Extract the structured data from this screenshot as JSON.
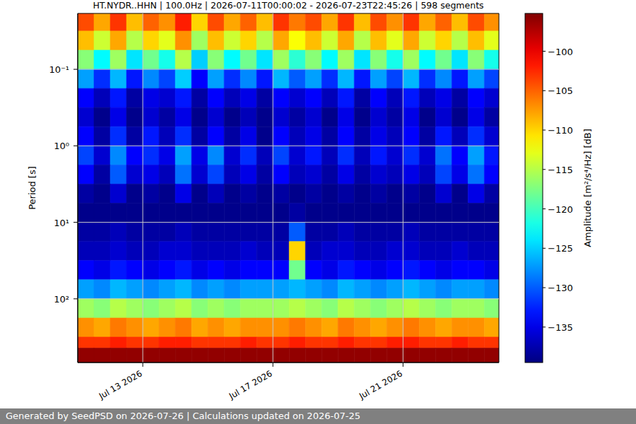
{
  "chart_data": {
    "type": "heatmap",
    "title": "HT.NYDR..HHN | 100.0Hz | 2026-07-11T00:00:02 - 2026-07-23T22:45:26 | 598 segments",
    "y_label": "Period [s]",
    "footer": "Generated by SeedPSD on 2026-07-26 | Calculations updated on 2026-07-25",
    "log": "y",
    "grid": true,
    "xlim": [
      "2026-07-11T00:00",
      "2026-07-23T22:45"
    ],
    "xticks": [
      {
        "value": "2026-07-13T00:00",
        "label": "Jul 13 2026"
      },
      {
        "value": "2026-07-17T00:00",
        "label": "Jul 17 2026"
      },
      {
        "value": "2026-07-21T00:00",
        "label": "Jul 21 2026"
      }
    ],
    "ylim": [
      0.0186,
      680
    ],
    "yticks": [
      {
        "value": 0.1,
        "label": "10⁻¹"
      },
      {
        "value": 1,
        "label": "10⁰"
      },
      {
        "value": 10,
        "label": "10¹"
      },
      {
        "value": 100,
        "label": "10²"
      }
    ],
    "colorbar": {
      "label": "Amplitude [m²/s⁴/Hz] [dB]",
      "range": [
        -139.5,
        -95.2
      ],
      "ticks": [
        {
          "value": -100,
          "label": "−100"
        },
        {
          "value": -105,
          "label": "−105"
        },
        {
          "value": -110,
          "label": "−110"
        },
        {
          "value": -115,
          "label": "−115"
        },
        {
          "value": -120,
          "label": "−120"
        },
        {
          "value": -125,
          "label": "−125"
        },
        {
          "value": -130,
          "label": "−130"
        },
        {
          "value": -135,
          "label": "−135"
        }
      ]
    },
    "x_edges": [
      "2026-07-11T00:00",
      "2026-07-11T12:00",
      "2026-07-12T00:00",
      "2026-07-12T12:00",
      "2026-07-13T00:00",
      "2026-07-13T12:00",
      "2026-07-14T00:00",
      "2026-07-14T12:00",
      "2026-07-15T00:00",
      "2026-07-15T12:00",
      "2026-07-16T00:00",
      "2026-07-16T12:00",
      "2026-07-17T00:00",
      "2026-07-17T12:00",
      "2026-07-18T00:00",
      "2026-07-18T12:00",
      "2026-07-19T00:00",
      "2026-07-19T12:00",
      "2026-07-20T00:00",
      "2026-07-20T12:00",
      "2026-07-21T00:00",
      "2026-07-21T12:00",
      "2026-07-22T00:00",
      "2026-07-22T12:00",
      "2026-07-23T00:00",
      "2026-07-23T12:00",
      "2026-07-23T22:45"
    ],
    "y_edges": [
      0.0186,
      0.0316,
      0.0562,
      0.1,
      0.178,
      0.316,
      0.562,
      1,
      1.78,
      3.16,
      5.62,
      10,
      17.8,
      31.6,
      56.2,
      100,
      178,
      316,
      440,
      680
    ],
    "cells": [
      [
        -104,
        -108,
        -103,
        -109,
        -105,
        -107,
        -102,
        -110,
        -104,
        -108,
        -105,
        -109,
        -103,
        -106,
        -104,
        -108,
        -103,
        -109,
        -104,
        -107,
        -103,
        -108,
        -105,
        -109,
        -104,
        -107
      ],
      [
        -109,
        -114,
        -108,
        -115,
        -110,
        -113,
        -107,
        -116,
        -109,
        -114,
        -110,
        -115,
        -108,
        -112,
        -109,
        -114,
        -108,
        -115,
        -109,
        -113,
        -108,
        -114,
        -110,
        -115,
        -109,
        -113
      ],
      [
        -117,
        -123,
        -116,
        -124,
        -118,
        -122,
        -115,
        -125,
        -117,
        -123,
        -118,
        -124,
        -116,
        -121,
        -117,
        -123,
        -116,
        -124,
        -117,
        -122,
        -116,
        -123,
        -118,
        -124,
        -117,
        -122
      ],
      [
        -127,
        -132,
        -126,
        -133,
        -128,
        -131,
        -125,
        -134,
        -127,
        -132,
        -128,
        -133,
        -126,
        -130,
        -127,
        -132,
        -126,
        -133,
        -127,
        -131,
        -126,
        -132,
        -128,
        -133,
        -127,
        -131
      ],
      [
        -134,
        -137,
        -133,
        -138,
        -135,
        -136,
        -133,
        -138,
        -134,
        -137,
        -135,
        -138,
        -134,
        -136,
        -134,
        -137,
        -133,
        -138,
        -134,
        -137,
        -133,
        -137,
        -135,
        -138,
        -134,
        -136
      ],
      [
        -136,
        -139,
        -135,
        -139,
        -136,
        -138,
        -135,
        -139,
        -136,
        -139,
        -137,
        -139,
        -136,
        -138,
        -136,
        -139,
        -135,
        -139,
        -136,
        -138,
        -135,
        -139,
        -136,
        -139,
        -135,
        -138
      ],
      [
        -134,
        -138,
        -132,
        -138,
        -133,
        -137,
        -132,
        -138,
        -134,
        -138,
        -135,
        -139,
        -134,
        -137,
        -135,
        -138,
        -134,
        -138,
        -135,
        -137,
        -134,
        -138,
        -133,
        -137,
        -132,
        -136
      ],
      [
        -131,
        -136,
        -128,
        -134,
        -132,
        -135,
        -127,
        -135,
        -128,
        -136,
        -132,
        -137,
        -131,
        -136,
        -133,
        -137,
        -132,
        -137,
        -133,
        -136,
        -132,
        -136,
        -129,
        -134,
        -127,
        -133
      ],
      [
        -134,
        -138,
        -130,
        -136,
        -135,
        -137,
        -129,
        -136,
        -131,
        -137,
        -135,
        -138,
        -134,
        -137,
        -136,
        -138,
        -135,
        -138,
        -136,
        -137,
        -135,
        -137,
        -131,
        -135,
        -129,
        -134
      ],
      [
        -138,
        -139,
        -136,
        -139,
        -138,
        -139,
        -135,
        -139,
        -137,
        -139,
        -138,
        -139,
        -138,
        -139,
        -138,
        -139,
        -138,
        -139,
        -138,
        -139,
        -138,
        -139,
        -136,
        -139,
        -135,
        -138
      ],
      [
        -139,
        -139,
        -139,
        -139,
        -139,
        -139,
        -139,
        -139,
        -139,
        -139,
        -139,
        -139,
        -139,
        -138,
        -139,
        -139,
        -139,
        -139,
        -139,
        -139,
        -139,
        -139,
        -139,
        -139,
        -139,
        -139
      ],
      [
        -138,
        -138,
        -137,
        -138,
        -138,
        -138,
        -137,
        -138,
        -138,
        -138,
        -138,
        -138,
        -138,
        -130,
        -138,
        -138,
        -137,
        -138,
        -138,
        -138,
        -137,
        -138,
        -138,
        -138,
        -138,
        -138
      ],
      [
        -137,
        -137,
        -136,
        -137,
        -137,
        -136,
        -136,
        -137,
        -137,
        -137,
        -136,
        -137,
        -137,
        -110,
        -137,
        -136,
        -136,
        -137,
        -137,
        -136,
        -136,
        -137,
        -137,
        -136,
        -137,
        -137
      ],
      [
        -134,
        -135,
        -133,
        -134,
        -135,
        -134,
        -133,
        -135,
        -134,
        -135,
        -134,
        -134,
        -134,
        -118,
        -134,
        -135,
        -133,
        -134,
        -135,
        -134,
        -133,
        -134,
        -135,
        -134,
        -134,
        -135
      ],
      [
        -127,
        -128,
        -126,
        -127,
        -128,
        -127,
        -126,
        -128,
        -127,
        -128,
        -127,
        -127,
        -127,
        -126,
        -127,
        -128,
        -126,
        -127,
        -128,
        -127,
        -126,
        -127,
        -128,
        -127,
        -127,
        -128
      ],
      [
        -116,
        -117,
        -115,
        -116,
        -117,
        -116,
        -115,
        -117,
        -116,
        -117,
        -116,
        -116,
        -116,
        -115,
        -116,
        -117,
        -115,
        -116,
        -117,
        -116,
        -115,
        -116,
        -117,
        -116,
        -116,
        -117
      ],
      [
        -107,
        -108,
        -106,
        -107,
        -108,
        -107,
        -106,
        -108,
        -107,
        -108,
        -107,
        -107,
        -107,
        -106,
        -107,
        -108,
        -106,
        -107,
        -108,
        -107,
        -106,
        -107,
        -108,
        -107,
        -107,
        -108
      ],
      [
        -103,
        -103,
        -102,
        -103,
        -103,
        -102,
        -102,
        -103,
        -103,
        -103,
        -102,
        -103,
        -103,
        -102,
        -103,
        -103,
        -102,
        -103,
        -103,
        -102,
        -102,
        -103,
        -103,
        -102,
        -103,
        -103
      ],
      [
        -96,
        -96,
        -96,
        -96,
        -96,
        -96,
        -96,
        -96,
        -96,
        -96,
        -96,
        -96,
        -96,
        -96,
        -96,
        -96,
        -96,
        -96,
        -96,
        -96,
        -96,
        -96,
        -96,
        -96,
        -96,
        -96
      ]
    ]
  }
}
